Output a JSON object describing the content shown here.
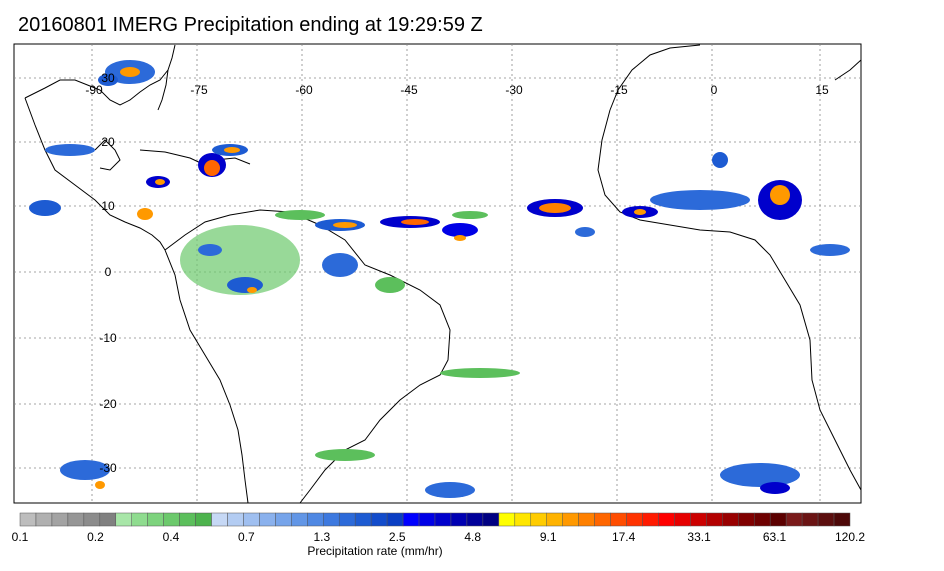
{
  "title": "20160801 IMERG Precipitation ending at 19:29:59 Z",
  "longitude_ticks": [
    "-90",
    "-75",
    "-60",
    "-45",
    "-30",
    "-15",
    "0",
    "15"
  ],
  "latitude_ticks": [
    "30",
    "20",
    "10",
    "0",
    "-10",
    "-20",
    "-30"
  ],
  "colorbar": {
    "labels": [
      "0.1",
      "0.2",
      "0.4",
      "0.7",
      "1.3",
      "2.5",
      "4.8",
      "9.1",
      "17.4",
      "33.1",
      "63.1",
      "120.2"
    ],
    "title": "Precipitation rate (mm/hr)",
    "colors": [
      "#bdbdbd",
      "#b0b0b0",
      "#a3a3a3",
      "#969696",
      "#8c8c8c",
      "#808080",
      "#a8e6a8",
      "#8fdc8f",
      "#7dd37d",
      "#6cc96c",
      "#5cbf5c",
      "#4db34d",
      "#c6d8f5",
      "#b3ccf2",
      "#9fbff0",
      "#8ab1ed",
      "#76a4ea",
      "#6296e6",
      "#4f88e3",
      "#3d79df",
      "#2c6ad9",
      "#1d5bd2",
      "#124ccb",
      "#0a3ec3",
      "#0000ff",
      "#0000e6",
      "#0000cc",
      "#0000b3",
      "#00009a",
      "#000082",
      "#ffff00",
      "#ffe600",
      "#ffcc00",
      "#ffb300",
      "#ff9900",
      "#ff8000",
      "#ff6600",
      "#ff4d00",
      "#ff3300",
      "#ff1a00",
      "#ff0000",
      "#e60000",
      "#cc0000",
      "#b30000",
      "#990000",
      "#800000",
      "#6e0000",
      "#5c0000",
      "#7a1a1a",
      "#6b1414",
      "#5c0e0e",
      "#4d0808"
    ]
  }
}
